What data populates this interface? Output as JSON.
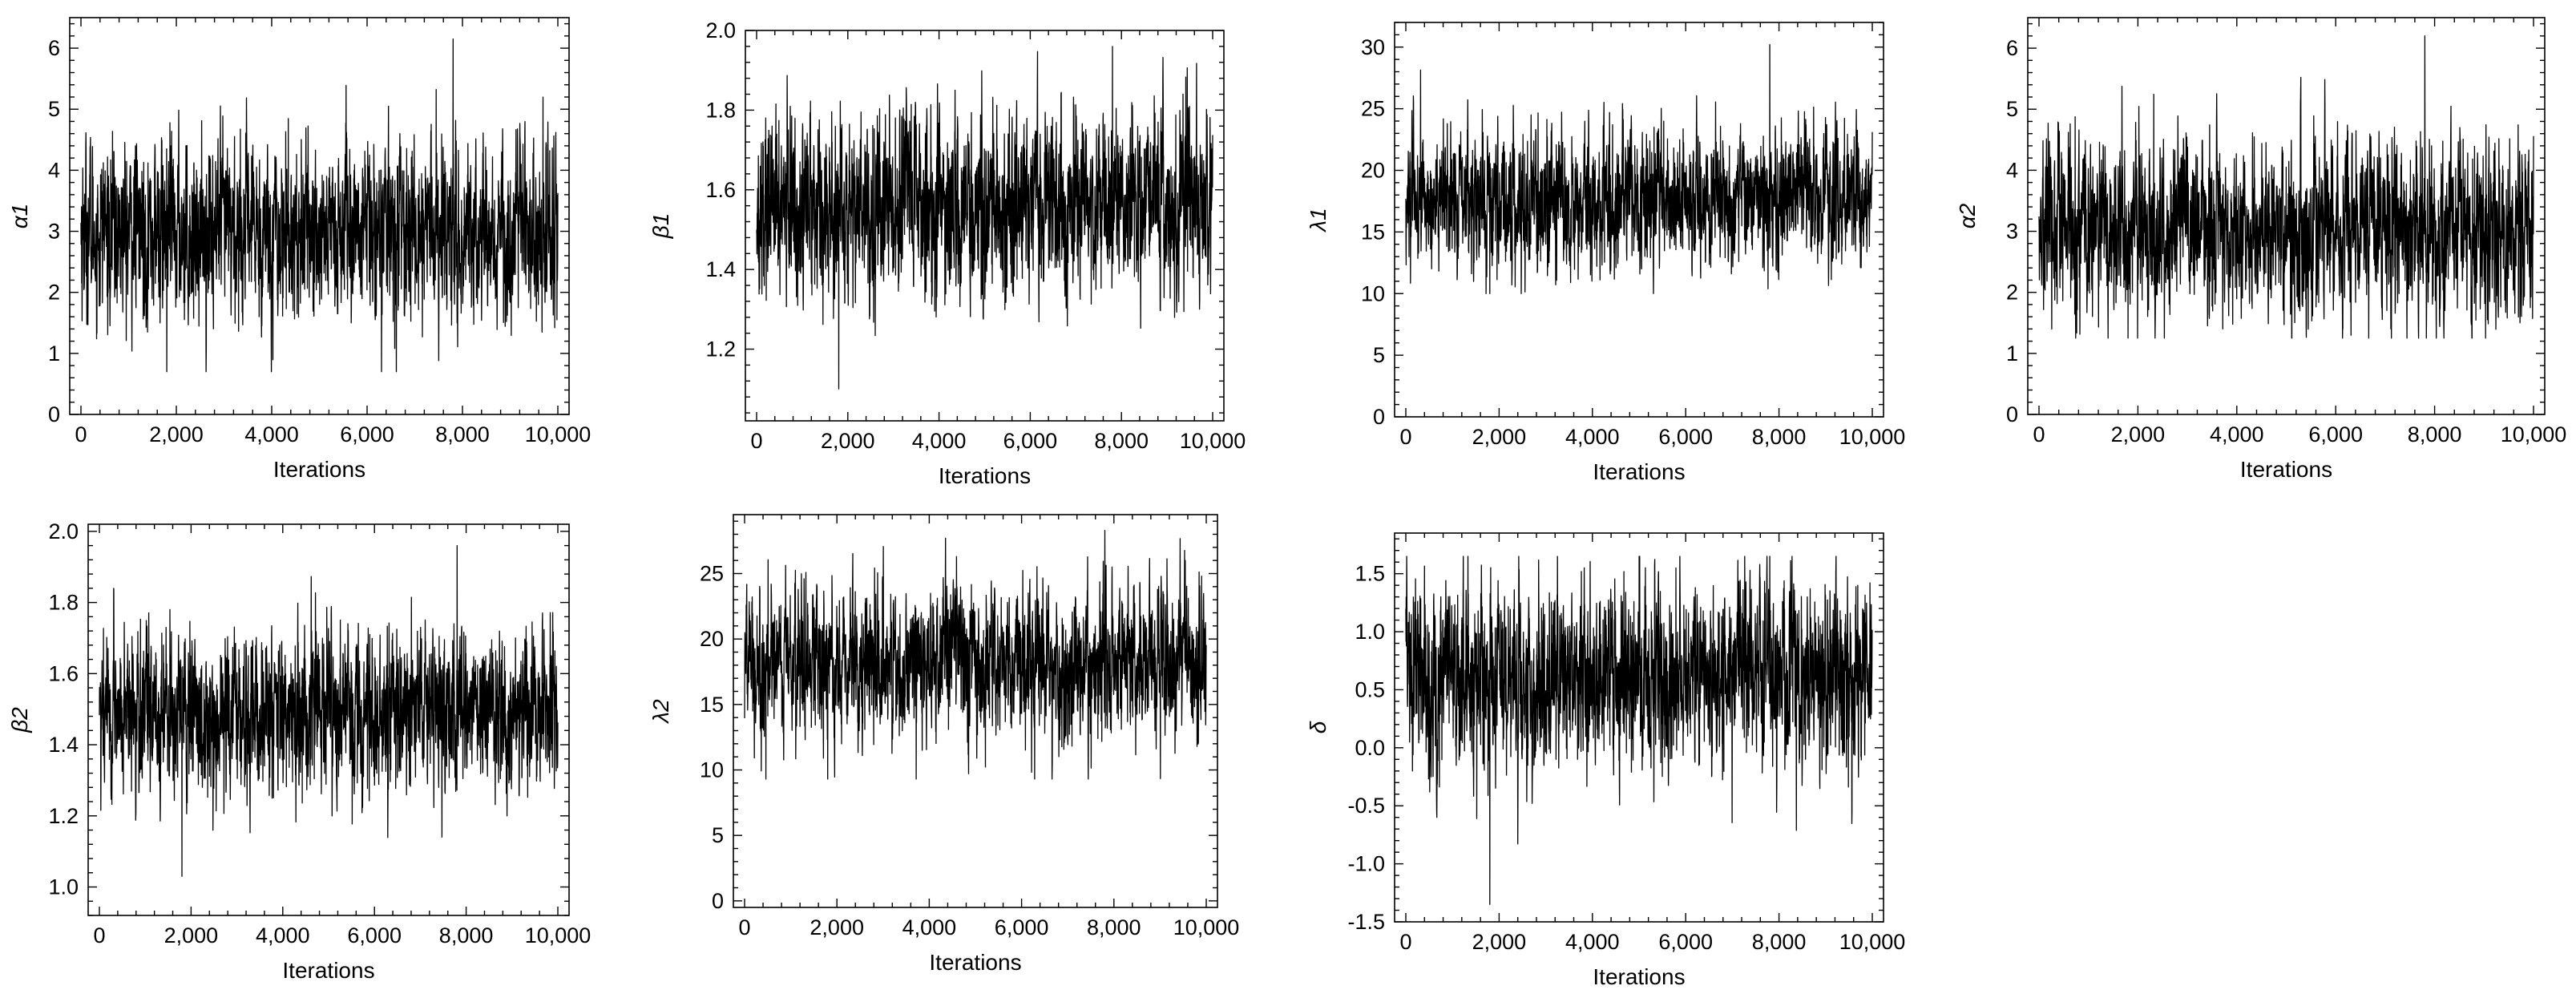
{
  "chart_data": [
    {
      "type": "line",
      "ylabel": "α1",
      "xlabel": "Iterations",
      "xlim": [
        0,
        10000
      ],
      "ylim": [
        0,
        6.5
      ],
      "x_ticks": [
        0,
        2000,
        4000,
        6000,
        8000,
        10000
      ],
      "x_tick_labels": [
        "0",
        "2,000",
        "4,000",
        "6,000",
        "8,000",
        "10,000"
      ],
      "y_ticks": [
        0,
        1,
        2,
        3,
        4,
        5,
        6
      ],
      "y_tick_labels": [
        "0",
        "1",
        "2",
        "3",
        "4",
        "5",
        "6"
      ],
      "trace": {
        "center": 3.0,
        "spread": 0.72,
        "min": 0.7,
        "max": 6.15
      },
      "series": [
        {
          "values": []
        }
      ],
      "style": {
        "color": "#000000",
        "grid": false,
        "frame": "box"
      }
    },
    {
      "type": "line",
      "ylabel": "β1",
      "xlabel": "Iterations",
      "xlim": [
        0,
        10000
      ],
      "ylim": [
        1.02,
        2.0
      ],
      "x_ticks": [
        0,
        2000,
        4000,
        6000,
        8000,
        10000
      ],
      "x_tick_labels": [
        "0",
        "2,000",
        "4,000",
        "6,000",
        "8,000",
        "10,000"
      ],
      "y_ticks": [
        1.2,
        1.4,
        1.6,
        1.8,
        2.0
      ],
      "y_tick_labels": [
        "1.2",
        "1.4",
        "1.6",
        "1.8",
        "2.0"
      ],
      "trace": {
        "center": 1.56,
        "spread": 0.11,
        "min": 1.1,
        "max": 1.96
      },
      "series": [
        {
          "values": []
        }
      ],
      "style": {
        "color": "#000000",
        "grid": false,
        "frame": "box"
      }
    },
    {
      "type": "line",
      "ylabel": "λ1",
      "xlabel": "Iterations",
      "xlim": [
        0,
        10000
      ],
      "ylim": [
        0,
        32
      ],
      "x_ticks": [
        0,
        2000,
        4000,
        6000,
        8000,
        10000
      ],
      "x_tick_labels": [
        "0",
        "2,000",
        "4,000",
        "6,000",
        "8,000",
        "10,000"
      ],
      "y_ticks": [
        0,
        5,
        10,
        15,
        20,
        25,
        30
      ],
      "y_tick_labels": [
        "0",
        "5",
        "10",
        "15",
        "20",
        "25",
        "30"
      ],
      "trace": {
        "center": 17.5,
        "spread": 2.7,
        "min": 10.0,
        "max": 30.2
      },
      "series": [
        {
          "values": []
        }
      ],
      "style": {
        "color": "#000000",
        "grid": false,
        "frame": "box"
      }
    },
    {
      "type": "line",
      "ylabel": "α2",
      "xlabel": "Iterations",
      "xlim": [
        0,
        10000
      ],
      "ylim": [
        0,
        6.5
      ],
      "x_ticks": [
        0,
        2000,
        4000,
        6000,
        8000,
        10000
      ],
      "x_tick_labels": [
        "0",
        "2,000",
        "4,000",
        "6,000",
        "8,000",
        "10,000"
      ],
      "y_ticks": [
        0,
        1,
        2,
        3,
        4,
        5,
        6
      ],
      "y_tick_labels": [
        "0",
        "1",
        "2",
        "3",
        "4",
        "5",
        "6"
      ],
      "trace": {
        "center": 3.0,
        "spread": 0.72,
        "min": 1.25,
        "max": 6.2
      },
      "series": [
        {
          "values": []
        }
      ],
      "style": {
        "color": "#000000",
        "grid": false,
        "frame": "box"
      }
    },
    {
      "type": "line",
      "ylabel": "β2",
      "xlabel": "Iterations",
      "xlim": [
        0,
        10000
      ],
      "ylim": [
        0.92,
        2.02
      ],
      "x_ticks": [
        0,
        2000,
        4000,
        6000,
        8000,
        10000
      ],
      "x_tick_labels": [
        "0",
        "2,000",
        "4,000",
        "6,000",
        "8,000",
        "10,000"
      ],
      "y_ticks": [
        1.0,
        1.2,
        1.4,
        1.6,
        1.8,
        2.0
      ],
      "y_tick_labels": [
        "1.0",
        "1.2",
        "1.4",
        "1.6",
        "1.8",
        "2.0"
      ],
      "trace": {
        "center": 1.49,
        "spread": 0.11,
        "min": 1.03,
        "max": 1.96
      },
      "series": [
        {
          "values": []
        }
      ],
      "style": {
        "color": "#000000",
        "grid": false,
        "frame": "box"
      }
    },
    {
      "type": "line",
      "ylabel": "λ2",
      "xlabel": "Iterations",
      "xlim": [
        0,
        10000
      ],
      "ylim": [
        -0.5,
        29.5
      ],
      "x_ticks": [
        0,
        2000,
        4000,
        6000,
        8000,
        10000
      ],
      "x_tick_labels": [
        "0",
        "2,000",
        "4,000",
        "6,000",
        "8,000",
        "10,000"
      ],
      "y_ticks": [
        0,
        5,
        10,
        15,
        20,
        25
      ],
      "y_tick_labels": [
        "0",
        "5",
        "10",
        "15",
        "20",
        "25"
      ],
      "trace": {
        "center": 18.2,
        "spread": 2.8,
        "min": 9.3,
        "max": 28.3
      },
      "series": [
        {
          "values": []
        }
      ],
      "style": {
        "color": "#000000",
        "grid": false,
        "frame": "box"
      }
    },
    {
      "type": "line",
      "ylabel": "δ",
      "xlabel": "Iterations",
      "xlim": [
        0,
        10000
      ],
      "ylim": [
        -1.5,
        1.85
      ],
      "x_ticks": [
        0,
        2000,
        4000,
        6000,
        8000,
        10000
      ],
      "x_tick_labels": [
        "0",
        "2,000",
        "4,000",
        "6,000",
        "8,000",
        "10,000"
      ],
      "y_ticks": [
        -1.5,
        -1.0,
        -0.5,
        0.0,
        0.5,
        1.0,
        1.5
      ],
      "y_tick_labels": [
        "-1.5",
        "-1.0",
        "-0.5",
        "0.0",
        "0.5",
        "1.0",
        "1.5"
      ],
      "trace": {
        "center": 0.6,
        "spread": 0.4,
        "min": -1.35,
        "max": 1.65
      },
      "series": [
        {
          "values": []
        }
      ],
      "style": {
        "color": "#000000",
        "grid": false,
        "frame": "box"
      }
    }
  ]
}
